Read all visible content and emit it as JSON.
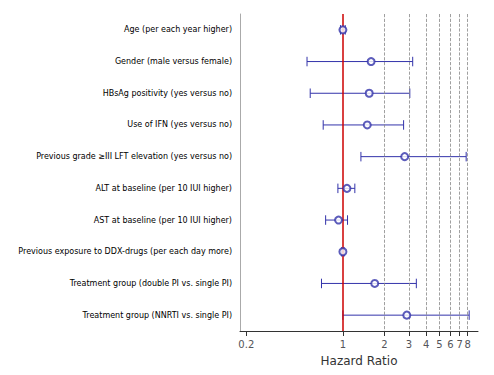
{
  "chart_data": {
    "type": "forest",
    "orientation": "horizontal",
    "categories": [
      "Age (per each year higher)",
      "Gender (male versus female)",
      "HBsAg positivity (yes versus no)",
      "Use of IFN (yes versus no)",
      "Previous grade ≥III LFT elevation (yes versus no)",
      "ALT at baseline (per 10 IUI higher)",
      "AST at baseline (per 10 IUI higher)",
      "Previous exposure to DDX-drugs (per each day more)",
      "Treatment group (double PI vs. single PI)",
      "Treatment group (NNRTI vs. single PI)"
    ],
    "values": [
      1.0,
      1.6,
      1.55,
      1.5,
      2.8,
      1.07,
      0.93,
      1.0,
      1.7,
      2.9
    ],
    "ci_lower": [
      0.96,
      0.55,
      0.58,
      0.72,
      1.35,
      0.92,
      0.75,
      0.98,
      0.7,
      1.0
    ],
    "ci_upper": [
      1.04,
      3.2,
      3.05,
      2.75,
      7.8,
      1.22,
      1.08,
      1.02,
      3.4,
      8.2
    ],
    "color": "#3333aa",
    "xlabel": "Hazard Ratio",
    "log": "x",
    "xlim": [
      0.18,
      9.5
    ],
    "xticks": [
      0.2,
      1,
      2,
      3,
      4,
      5,
      6,
      7,
      8
    ],
    "grid": false,
    "reference_line": {
      "value": 1.0,
      "color": "#cc0000"
    },
    "dashed_lines": [
      2,
      3,
      4,
      5,
      6,
      7,
      8
    ]
  }
}
